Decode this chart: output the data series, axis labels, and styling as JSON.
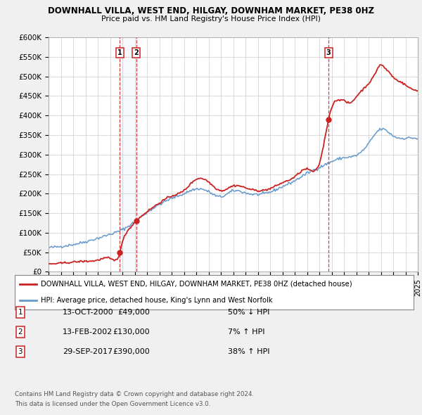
{
  "title_line1": "DOWNHALL VILLA, WEST END, HILGAY, DOWNHAM MARKET, PE38 0HZ",
  "title_line2": "Price paid vs. HM Land Registry's House Price Index (HPI)",
  "legend_line1": "DOWNHALL VILLA, WEST END, HILGAY, DOWNHAM MARKET, PE38 0HZ (detached house)",
  "legend_line2": "HPI: Average price, detached house, King's Lynn and West Norfolk",
  "footer_line1": "Contains HM Land Registry data © Crown copyright and database right 2024.",
  "footer_line2": "This data is licensed under the Open Government Licence v3.0.",
  "transactions": [
    {
      "num": 1,
      "date": "13-OCT-2000",
      "price": "£49,000",
      "hpi": "50% ↓ HPI",
      "year": 2000.79
    },
    {
      "num": 2,
      "date": "13-FEB-2002",
      "price": "£130,000",
      "hpi": "7% ↑ HPI",
      "year": 2002.12
    },
    {
      "num": 3,
      "date": "29-SEP-2017",
      "price": "£390,000",
      "hpi": "38% ↑ HPI",
      "year": 2017.75
    }
  ],
  "sale_points": [
    {
      "year": 2000.79,
      "value": 49000
    },
    {
      "year": 2002.12,
      "value": 130000
    },
    {
      "year": 2017.75,
      "value": 390000
    }
  ],
  "hpi_color": "#6699cc",
  "price_color": "#cc2222",
  "background_color": "#f0f0f0",
  "plot_bg_color": "#ffffff",
  "grid_color": "#cccccc",
  "ylim": [
    0,
    600000
  ],
  "xlim_start": 1995,
  "xlim_end": 2025,
  "yticks": [
    0,
    50000,
    100000,
    150000,
    200000,
    250000,
    300000,
    350000,
    400000,
    450000,
    500000,
    550000,
    600000
  ],
  "ytick_labels": [
    "£0",
    "£50K",
    "£100K",
    "£150K",
    "£200K",
    "£250K",
    "£300K",
    "£350K",
    "£400K",
    "£450K",
    "£500K",
    "£550K",
    "£600K"
  ]
}
